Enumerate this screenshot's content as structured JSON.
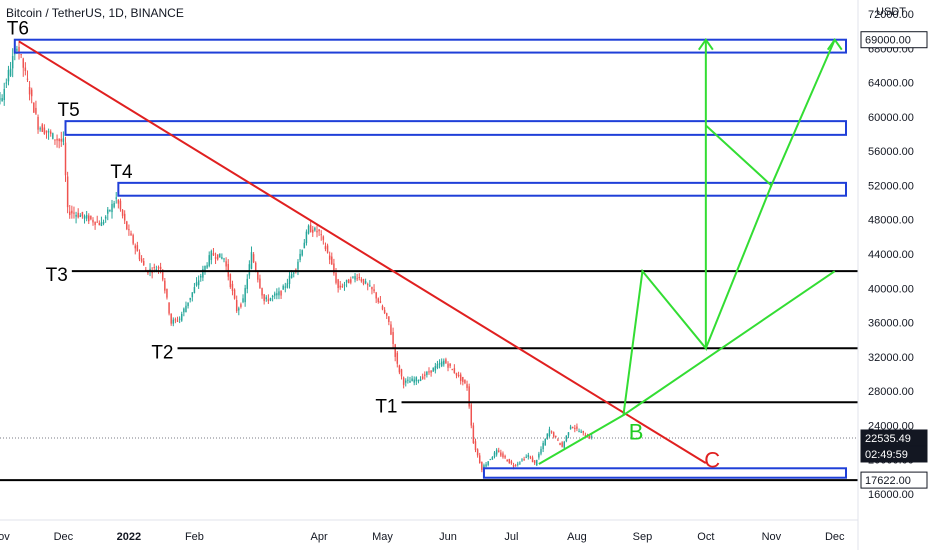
{
  "chart_data": {
    "type": "candlestick",
    "title": "Bitcoin / TetherUS, 1D, BINANCE",
    "y_unit": "USDT",
    "ylim": [
      15000,
      74000
    ],
    "y_ticks": [
      16000,
      20000,
      24000,
      28000,
      32000,
      36000,
      40000,
      44000,
      48000,
      52000,
      56000,
      60000,
      64000,
      68000,
      72000
    ],
    "x_ticks": [
      {
        "date": "2021-11-01",
        "label": "Nov"
      },
      {
        "date": "2021-12-01",
        "label": "Dec"
      },
      {
        "date": "2022-01-01",
        "label": "2022"
      },
      {
        "date": "2022-02-01",
        "label": "Feb"
      },
      {
        "date": "2022-04-01",
        "label": "Apr"
      },
      {
        "date": "2022-05-01",
        "label": "May"
      },
      {
        "date": "2022-06-01",
        "label": "Jun"
      },
      {
        "date": "2022-07-01",
        "label": "Jul"
      },
      {
        "date": "2022-08-01",
        "label": "Aug"
      },
      {
        "date": "2022-09-01",
        "label": "Sep"
      },
      {
        "date": "2022-10-01",
        "label": "Oct"
      },
      {
        "date": "2022-11-01",
        "label": "Nov"
      },
      {
        "date": "2022-12-01",
        "label": "Dec"
      }
    ],
    "xlim": [
      "2021-11-01",
      "2022-12-12"
    ],
    "price_path": [
      [
        "2021-10-20",
        63000
      ],
      [
        "2021-10-28",
        61000
      ],
      [
        "2021-11-03",
        62500
      ],
      [
        "2021-11-10",
        68500
      ],
      [
        "2021-11-15",
        64000
      ],
      [
        "2021-11-20",
        59000
      ],
      [
        "2021-11-28",
        57500
      ],
      [
        "2021-12-02",
        57000
      ],
      [
        "2021-12-04",
        49000
      ],
      [
        "2021-12-10",
        48500
      ],
      [
        "2021-12-20",
        47500
      ],
      [
        "2021-12-27",
        50500
      ],
      [
        "2022-01-01",
        47000
      ],
      [
        "2022-01-10",
        42000
      ],
      [
        "2022-01-17",
        42500
      ],
      [
        "2022-01-22",
        36000
      ],
      [
        "2022-01-26",
        36500
      ],
      [
        "2022-02-05",
        41500
      ],
      [
        "2022-02-10",
        44000
      ],
      [
        "2022-02-16",
        43500
      ],
      [
        "2022-02-22",
        37500
      ],
      [
        "2022-02-25",
        38500
      ],
      [
        "2022-03-01",
        44000
      ],
      [
        "2022-03-07",
        38500
      ],
      [
        "2022-03-15",
        39500
      ],
      [
        "2022-03-22",
        42500
      ],
      [
        "2022-03-28",
        47000
      ],
      [
        "2022-04-02",
        46500
      ],
      [
        "2022-04-07",
        43500
      ],
      [
        "2022-04-11",
        40000
      ],
      [
        "2022-04-20",
        41500
      ],
      [
        "2022-04-28",
        39500
      ],
      [
        "2022-05-05",
        36000
      ],
      [
        "2022-05-09",
        31000
      ],
      [
        "2022-05-12",
        29000
      ],
      [
        "2022-05-20",
        29500
      ],
      [
        "2022-05-31",
        31500
      ],
      [
        "2022-06-06",
        30000
      ],
      [
        "2022-06-11",
        28500
      ],
      [
        "2022-06-14",
        22000
      ],
      [
        "2022-06-18",
        19000
      ],
      [
        "2022-06-25",
        21000
      ],
      [
        "2022-07-03",
        19300
      ],
      [
        "2022-07-10",
        20500
      ],
      [
        "2022-07-13",
        19500
      ],
      [
        "2022-07-20",
        23500
      ],
      [
        "2022-07-26",
        21500
      ],
      [
        "2022-07-30",
        24000
      ],
      [
        "2022-08-05",
        23000
      ],
      [
        "2022-08-09",
        22535
      ]
    ],
    "last_price": "22535.49",
    "countdown": "02:49:59",
    "level_tag": "17622.00",
    "top_tag": "69000.00",
    "horizontal_levels": [
      {
        "label": "T3",
        "price": 42000,
        "from": "2021-12-05"
      },
      {
        "label": "T2",
        "price": 33000,
        "from": "2022-01-24"
      },
      {
        "label": "T1",
        "price": 26700,
        "from": "2022-05-10"
      },
      {
        "label": "",
        "price": 17622,
        "from": "2021-10-20"
      }
    ],
    "zones": [
      {
        "label": "T6",
        "low": 67500,
        "high": 69000,
        "from": "2021-11-08"
      },
      {
        "label": "T5",
        "low": 57900,
        "high": 59500,
        "from": "2021-12-02"
      },
      {
        "label": "T4",
        "low": 50800,
        "high": 52300,
        "from": "2021-12-27"
      },
      {
        "label": "",
        "low": 17900,
        "high": 19000,
        "from": "2022-06-18"
      }
    ],
    "trendline": [
      [
        "2021-11-10",
        68800
      ],
      [
        "2022-10-01",
        19600
      ]
    ],
    "annotations": [
      {
        "text": "B",
        "date": "2022-08-29",
        "price": 23300,
        "color": "#22cc22"
      },
      {
        "text": "C",
        "date": "2022-10-04",
        "price": 20000,
        "color": "#e02020"
      }
    ],
    "projections": [
      [
        [
          "2022-07-14",
          19500
        ],
        [
          "2022-08-23",
          25200
        ],
        [
          "2022-09-01",
          42000
        ],
        [
          "2022-10-01",
          33000
        ],
        [
          "2022-10-01",
          69000
        ]
      ],
      [
        [
          "2022-08-23",
          25200
        ],
        [
          "2022-12-01",
          42000
        ]
      ],
      [
        [
          "2022-10-01",
          59000
        ],
        [
          "2022-11-01",
          52000
        ],
        [
          "2022-12-01",
          69000
        ]
      ],
      [
        [
          "2022-10-01",
          33000
        ],
        [
          "2022-11-01",
          52000
        ]
      ]
    ]
  }
}
